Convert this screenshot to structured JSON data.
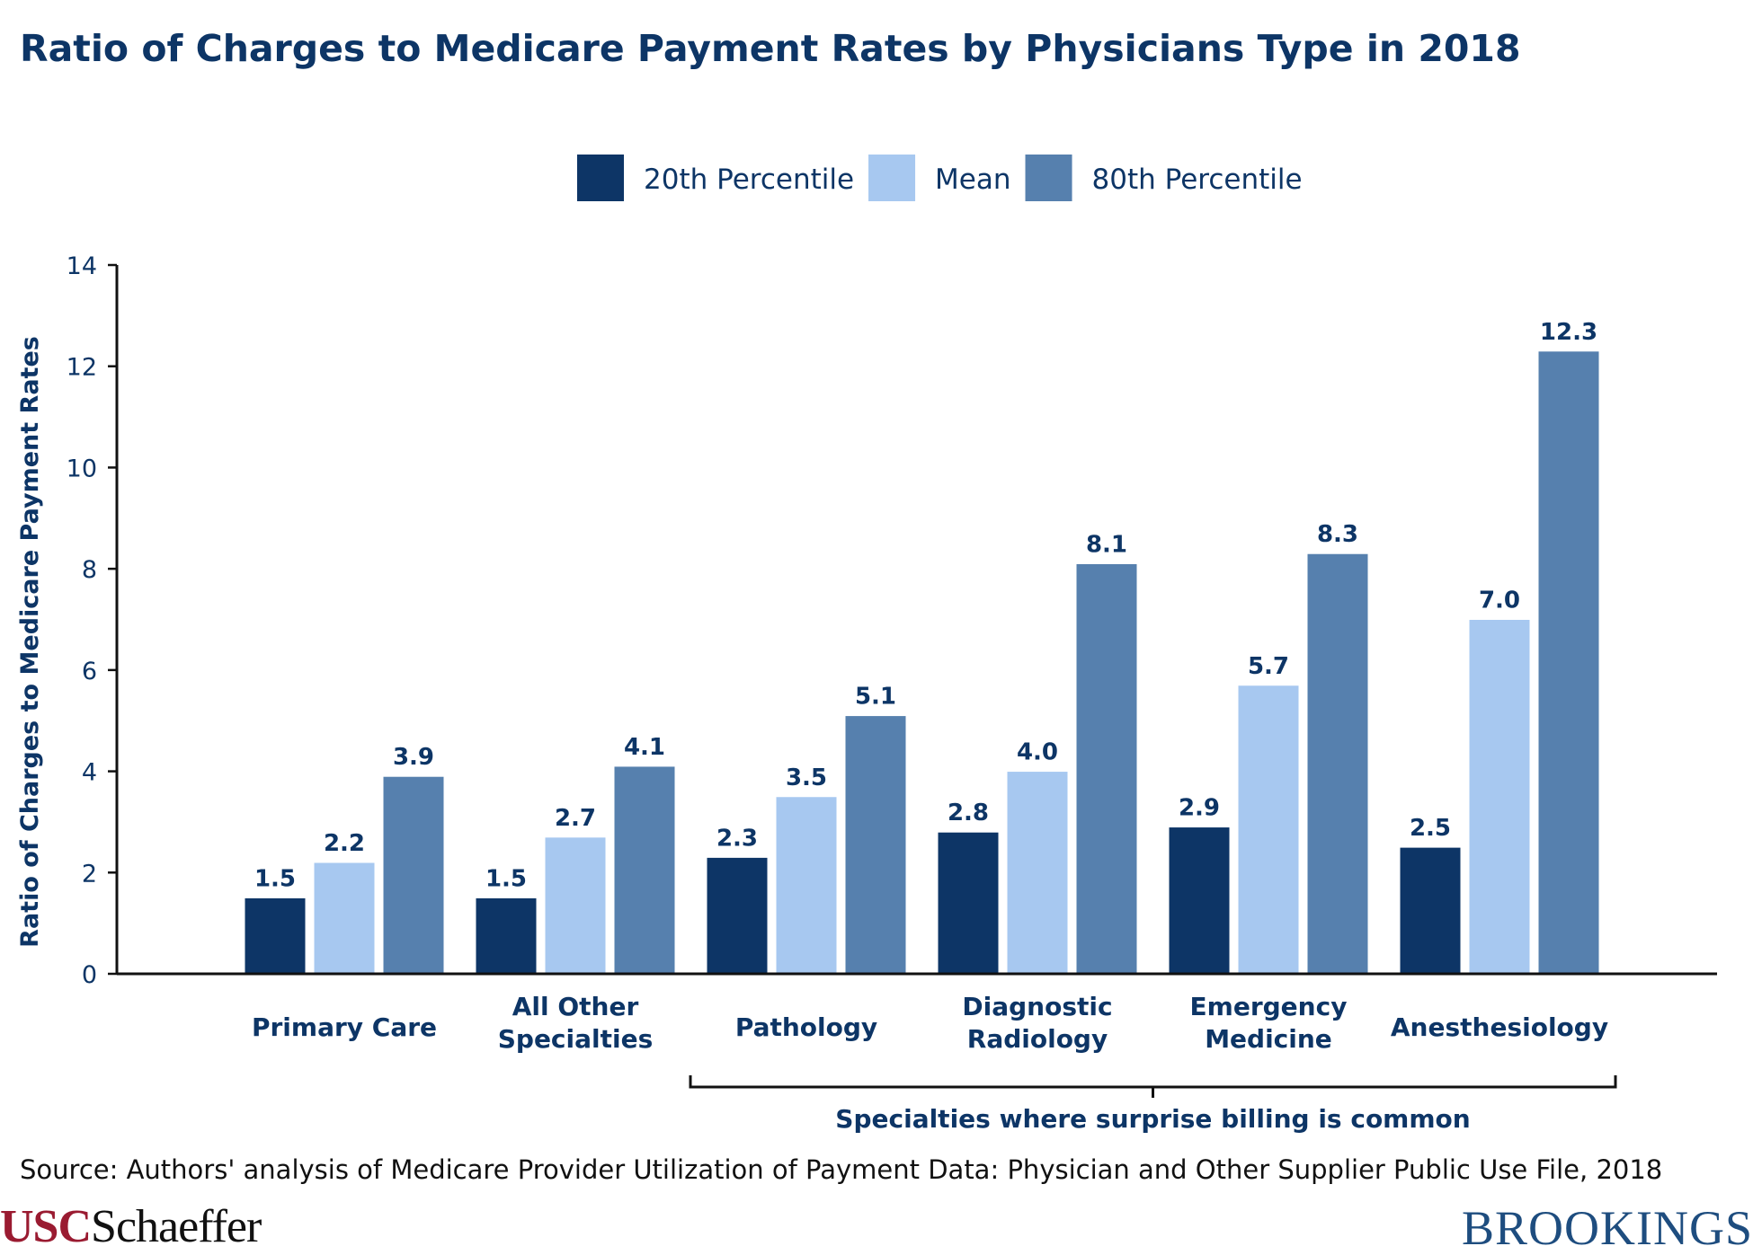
{
  "chart_data": {
    "type": "bar",
    "title": "Ratio of Charges to Medicare Payment Rates by Physicians Type in 2018",
    "ylabel": "Ratio of Charges to Medicare Payment Rates",
    "xlabel": "",
    "ylim": [
      0,
      14
    ],
    "yticks": [
      0,
      2,
      4,
      6,
      8,
      10,
      12,
      14
    ],
    "grid": false,
    "legend_position": "top-center",
    "categories": [
      [
        "Primary Care"
      ],
      [
        "All Other",
        "Specialties"
      ],
      [
        "Pathology"
      ],
      [
        "Diagnostic",
        "Radiology"
      ],
      [
        "Emergency",
        "Medicine"
      ],
      [
        "Anesthesiology"
      ]
    ],
    "series": [
      {
        "name": "20th Percentile",
        "color": "#0d3566",
        "values": [
          1.5,
          1.5,
          2.3,
          2.8,
          2.9,
          2.5
        ],
        "labels": [
          "1.5",
          "1.5",
          "2.3",
          "2.8",
          "2.9",
          "2.5"
        ]
      },
      {
        "name": "Mean",
        "color": "#a7c8f0",
        "values": [
          2.2,
          2.7,
          3.5,
          4.0,
          5.7,
          7.0
        ],
        "labels": [
          "2.2",
          "2.7",
          "3.5",
          "4.0",
          "5.7",
          "7.0"
        ]
      },
      {
        "name": "80th Percentile",
        "color": "#5680ae",
        "values": [
          3.9,
          4.1,
          5.1,
          8.1,
          8.3,
          12.3
        ],
        "labels": [
          "3.9",
          "4.1",
          "5.1",
          "8.1",
          "8.3",
          "12.3"
        ]
      }
    ],
    "annotation": "Specialties where surprise billing is common",
    "annotation_spans_categories": [
      2,
      5
    ]
  },
  "source": "Source: Authors' analysis of Medicare Provider Utilization of Payment Data: Physician and Other Supplier Public Use File, 2018",
  "logos": {
    "left_part1": "USC",
    "left_part2": "Schaeffer",
    "right": "BROOKINGS"
  }
}
